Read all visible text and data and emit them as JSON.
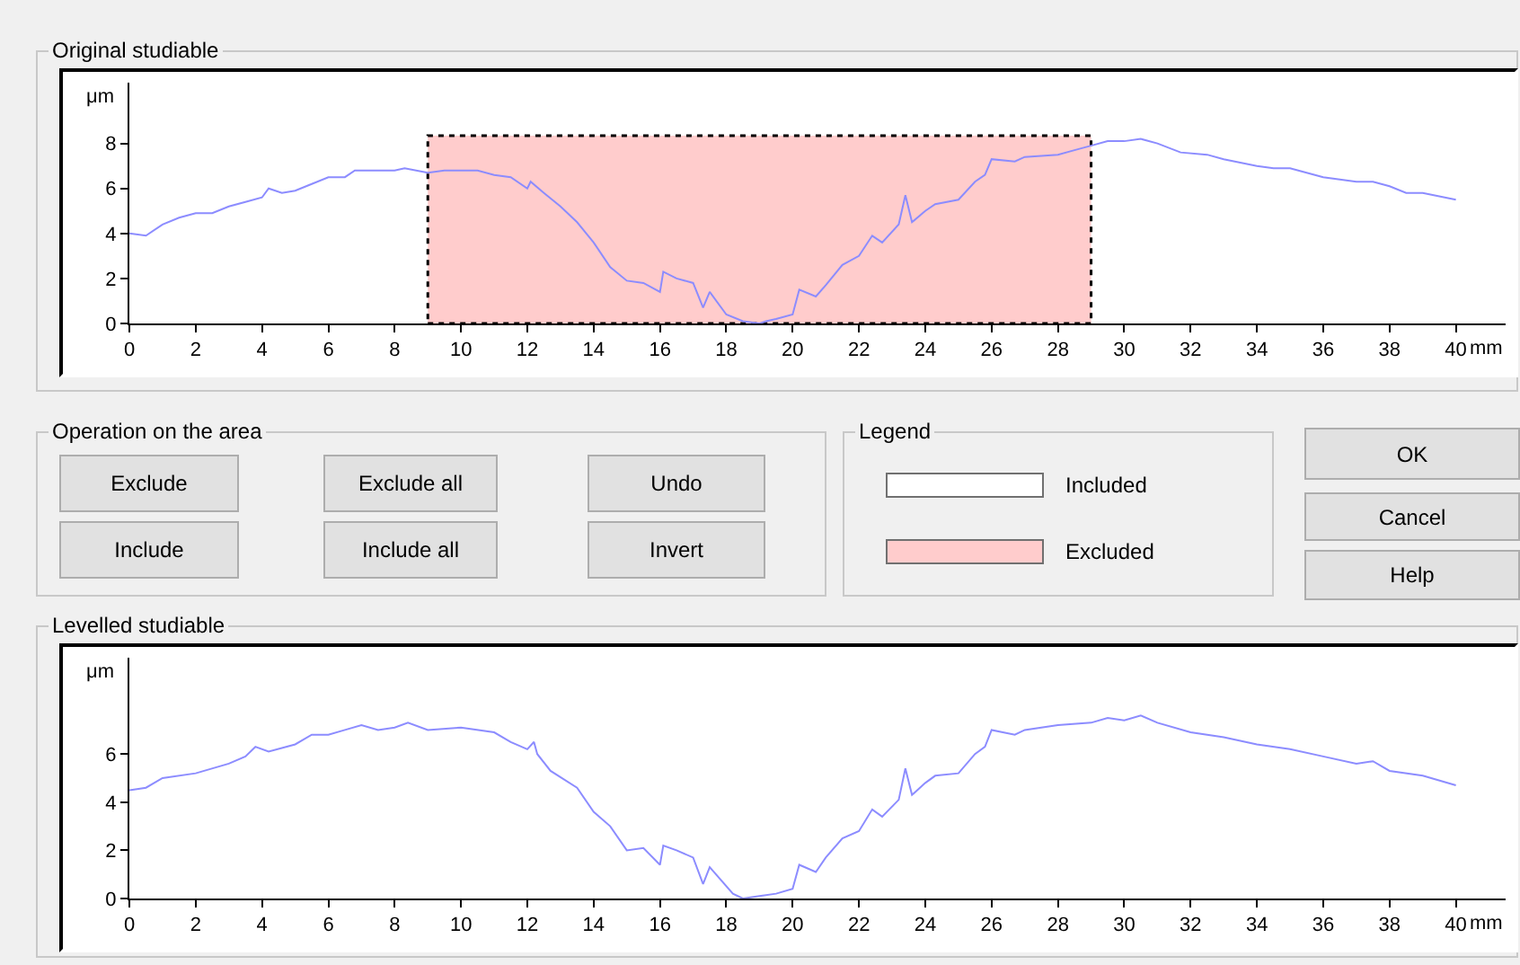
{
  "chart_data": [
    {
      "type": "line",
      "title": "Original studiable",
      "xlabel": "mm",
      "ylabel": "μm",
      "color": "#8c8cff",
      "x": [
        0,
        0.5,
        1,
        1.5,
        2,
        2.5,
        3,
        3.5,
        4,
        4.2,
        4.6,
        5,
        5.5,
        6,
        6.5,
        6.8,
        7.5,
        8,
        8.3,
        9,
        9.5,
        10,
        10.5,
        11,
        11.5,
        12,
        12.1,
        12.5,
        13,
        13.5,
        14,
        14.5,
        15,
        15.5,
        16,
        16.1,
        16.5,
        17,
        17.3,
        17.5,
        18,
        18.5,
        19,
        19.2,
        19.5,
        20,
        20.2,
        20.7,
        21,
        21.5,
        22,
        22.4,
        22.7,
        23.2,
        23.4,
        23.6,
        24,
        24.3,
        25,
        25.5,
        25.8,
        26,
        26.7,
        27,
        28,
        28.5,
        29,
        29.5,
        30,
        30.5,
        31,
        31.7,
        32.5,
        33,
        34,
        34.5,
        35,
        35.5,
        36,
        37,
        37.5,
        38,
        38.5,
        39,
        40
      ],
      "values": [
        4.0,
        3.9,
        4.4,
        4.7,
        4.9,
        4.9,
        5.2,
        5.4,
        5.6,
        6.0,
        5.8,
        5.9,
        6.2,
        6.5,
        6.5,
        6.8,
        6.8,
        6.8,
        6.9,
        6.7,
        6.8,
        6.8,
        6.8,
        6.6,
        6.5,
        6.0,
        6.3,
        5.8,
        5.2,
        4.5,
        3.6,
        2.5,
        1.9,
        1.8,
        1.4,
        2.3,
        2.0,
        1.8,
        0.7,
        1.4,
        0.4,
        0.1,
        0.0,
        0.1,
        0.2,
        0.4,
        1.5,
        1.2,
        1.7,
        2.6,
        3.0,
        3.9,
        3.6,
        4.4,
        5.7,
        4.5,
        5.0,
        5.3,
        5.5,
        6.3,
        6.6,
        7.3,
        7.2,
        7.4,
        7.5,
        7.7,
        7.9,
        8.1,
        8.1,
        8.2,
        8.0,
        7.6,
        7.5,
        7.3,
        7.0,
        6.9,
        6.9,
        6.7,
        6.5,
        6.3,
        6.3,
        6.1,
        5.8,
        5.8,
        5.5
      ],
      "xlim": [
        0,
        41.5
      ],
      "xticks": [
        0,
        2,
        4,
        6,
        8,
        10,
        12,
        14,
        16,
        18,
        20,
        22,
        24,
        26,
        28,
        30,
        32,
        34,
        36,
        38,
        40
      ],
      "ylim": [
        0,
        10.7
      ],
      "yticks": [
        0,
        2,
        4,
        6,
        8
      ],
      "bands": [
        {
          "axis": "x",
          "from": 9,
          "to": 29,
          "color": "#ffcccc"
        }
      ]
    },
    {
      "type": "other",
      "annotations": [
        "Operation on the area",
        "Exclude",
        "Exclude all",
        "Undo",
        "Include",
        "Include all",
        "Invert",
        "Legend",
        "Included",
        "Excluded",
        "OK",
        "Cancel",
        "Help"
      ]
    },
    {
      "type": "line",
      "title": "Levelled studiable",
      "xlabel": "mm",
      "ylabel": "μm",
      "color": "#8c8cff",
      "x": [
        0,
        0.5,
        1,
        2,
        3,
        3.5,
        3.8,
        4.2,
        5,
        5.5,
        6,
        6.5,
        7,
        7.5,
        8,
        8.4,
        9,
        10,
        11,
        11.5,
        12,
        12.2,
        12.3,
        12.7,
        13.5,
        14,
        14.5,
        15,
        15.5,
        16,
        16.1,
        16.5,
        17,
        17.3,
        17.5,
        18.2,
        18.5,
        19,
        19.5,
        20,
        20.2,
        20.7,
        21,
        21.5,
        22,
        22.4,
        22.7,
        23.2,
        23.4,
        23.6,
        24,
        24.3,
        25,
        25.5,
        25.8,
        26,
        26.7,
        27,
        28,
        29,
        29.5,
        30,
        30.5,
        31,
        32,
        33,
        34,
        35,
        36,
        37,
        37.5,
        38,
        39,
        40
      ],
      "values": [
        4.5,
        4.6,
        5.0,
        5.2,
        5.6,
        5.9,
        6.3,
        6.1,
        6.4,
        6.8,
        6.8,
        7.0,
        7.2,
        7.0,
        7.1,
        7.3,
        7.0,
        7.1,
        6.9,
        6.5,
        6.2,
        6.5,
        6.0,
        5.3,
        4.6,
        3.6,
        3.0,
        2.0,
        2.1,
        1.4,
        2.2,
        2.0,
        1.7,
        0.6,
        1.3,
        0.2,
        0.0,
        0.1,
        0.2,
        0.4,
        1.4,
        1.1,
        1.7,
        2.5,
        2.8,
        3.7,
        3.4,
        4.1,
        5.4,
        4.3,
        4.8,
        5.1,
        5.2,
        6.0,
        6.3,
        7.0,
        6.8,
        7.0,
        7.2,
        7.3,
        7.5,
        7.4,
        7.6,
        7.3,
        6.9,
        6.7,
        6.4,
        6.2,
        5.9,
        5.6,
        5.7,
        5.3,
        5.1,
        4.7
      ],
      "xlim": [
        0,
        41.5
      ],
      "xticks": [
        0,
        2,
        4,
        6,
        8,
        10,
        12,
        14,
        16,
        18,
        20,
        22,
        24,
        26,
        28,
        30,
        32,
        34,
        36,
        38,
        40
      ],
      "ylim": [
        0,
        10
      ],
      "yticks": [
        0,
        2,
        4,
        6
      ]
    }
  ]
}
